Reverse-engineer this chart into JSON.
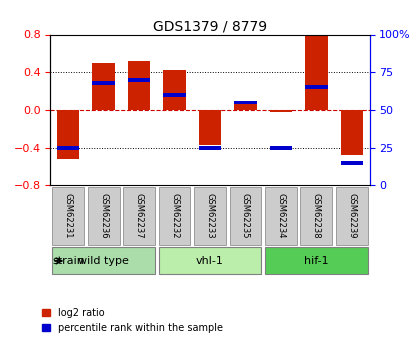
{
  "title": "GDS1379 / 8779",
  "samples": [
    "GSM62231",
    "GSM62236",
    "GSM62237",
    "GSM62232",
    "GSM62233",
    "GSM62235",
    "GSM62234",
    "GSM62238",
    "GSM62239"
  ],
  "log2_ratio": [
    -0.52,
    0.5,
    0.52,
    0.42,
    -0.37,
    0.1,
    -0.02,
    0.8,
    -0.48
  ],
  "percentile_rank": [
    25,
    68,
    70,
    60,
    25,
    55,
    25,
    65,
    15
  ],
  "groups": [
    {
      "label": "wild type",
      "indices": [
        0,
        1,
        2
      ],
      "color": "#aaddaa"
    },
    {
      "label": "vhl-1",
      "indices": [
        3,
        4,
        5
      ],
      "color": "#bbeeaa"
    },
    {
      "label": "hif-1",
      "indices": [
        6,
        7,
        8
      ],
      "color": "#55cc55"
    }
  ],
  "ylim_left": [
    -0.8,
    0.8
  ],
  "ylim_right": [
    0,
    100
  ],
  "yticks_left": [
    -0.8,
    -0.4,
    0.0,
    0.4,
    0.8
  ],
  "yticks_right": [
    0,
    25,
    50,
    75,
    100
  ],
  "bar_color_red": "#cc2200",
  "bar_color_blue": "#0000cc",
  "hline_color": "#cc0000",
  "grid_color": "#000000",
  "bg_color": "#ffffff",
  "plot_bg": "#ffffff",
  "legend_red_label": "log2 ratio",
  "legend_blue_label": "percentile rank within the sample"
}
